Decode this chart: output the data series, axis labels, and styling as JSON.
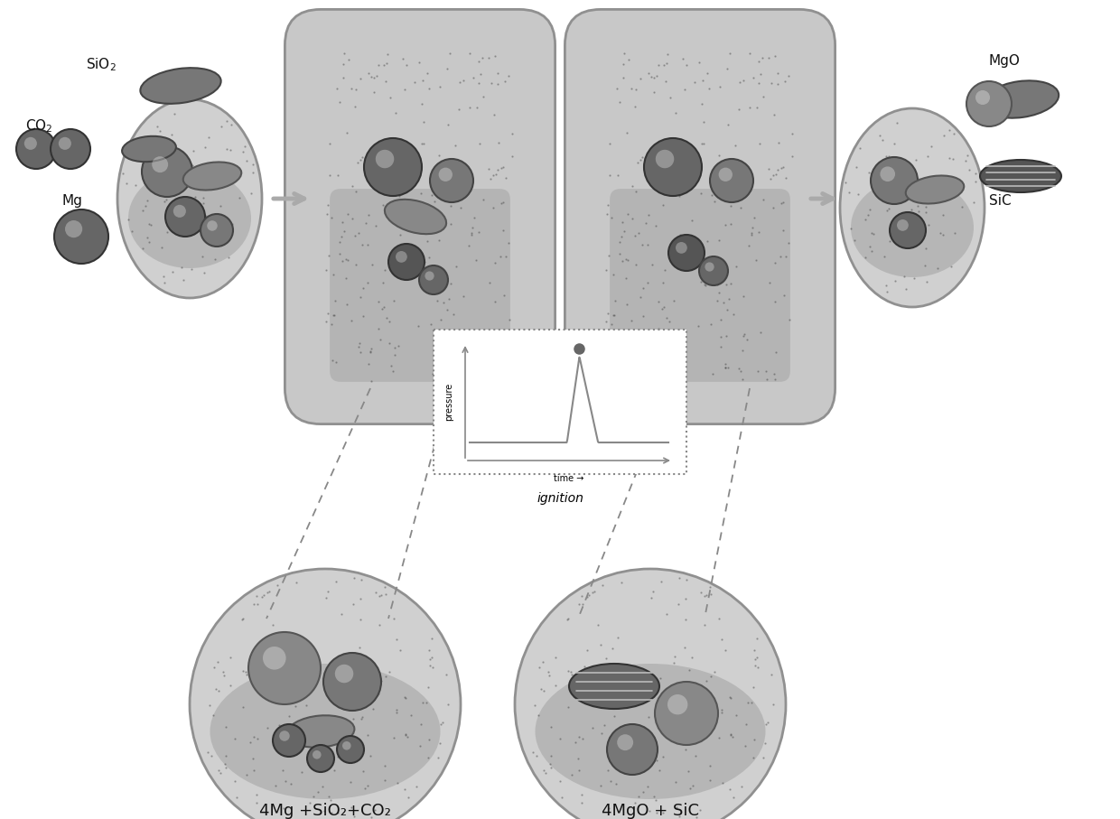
{
  "background_color": "#ffffff",
  "blob_fill_light": "#c8c8c8",
  "blob_fill_dark": "#a0a0a0",
  "blob_edge": "#888888",
  "sphere_dark": "#555555",
  "sphere_med": "#777777",
  "ellipse_dark": "#666666",
  "arrow_color": "#999999",
  "graph_edge": "#888888",
  "text_color": "#111111",
  "bottom_left_label": "4Mg +SiO₂+CO₂",
  "bottom_right_label": "4MgO + SiC",
  "ignition_label": "ignition",
  "time_label": "time →",
  "pressure_label": "pressure"
}
